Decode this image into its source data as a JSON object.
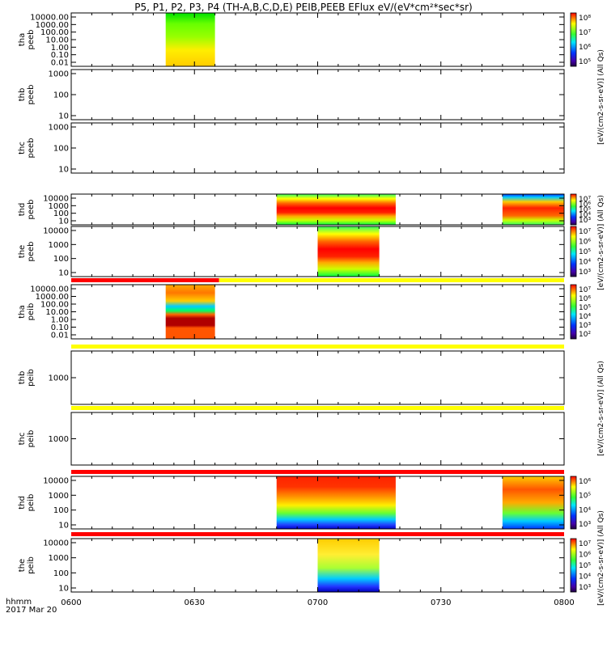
{
  "title": "P5, P1, P2, P3, P4 (TH-A,B,C,D,E) PEIB,PEEB EFlux eV/(eV*cm²*sec*sr)",
  "footer": {
    "axis_label": "hhmm",
    "date": "2017 Mar 20"
  },
  "colorbar_label": "[eV/(cm2-s-sr-eV)] (All Qs)",
  "colors": {
    "red": "#ff0000",
    "yellow": "#ffff00",
    "dark_red": "#b00000",
    "orange": "#ff6a00",
    "green": "#55ff00",
    "cyan": "#00e5ff",
    "blue": "#0033ff"
  },
  "chart_data": {
    "type": "heatmap",
    "xlabel": "hhmm",
    "x_ticks": [
      "0600",
      "0630",
      "0700",
      "0730",
      "0800"
    ],
    "xlim": [
      "0600",
      "0800"
    ],
    "panels": [
      {
        "id": "tha_peeb",
        "label": [
          "tha",
          "peeb"
        ],
        "ylog": true,
        "yticks": [
          "10000.00",
          "1000.00",
          "100.00",
          "10.00",
          "1.00",
          "0.10",
          "0.01"
        ],
        "colorbar_ticks": [
          "10⁸",
          "10⁷",
          "10⁶",
          "10⁵"
        ],
        "segments": [
          {
            "start": "0623",
            "end": "0635",
            "style": "peeb_a"
          }
        ],
        "top_bar": "none"
      },
      {
        "id": "thb_peeb",
        "label": [
          "thb",
          "peeb"
        ],
        "ylog": true,
        "yticks": [
          "1000",
          "100",
          "10"
        ],
        "colorbar_ticks": [],
        "segments": [],
        "top_bar": "none"
      },
      {
        "id": "thc_peeb",
        "label": [
          "thc",
          "peeb"
        ],
        "ylog": true,
        "yticks": [
          "1000",
          "100",
          "10"
        ],
        "colorbar_ticks": [],
        "segments": [],
        "top_bar": "none"
      },
      {
        "id": "thd_peeb",
        "label": [
          "thd",
          "peeb"
        ],
        "ylog": true,
        "yticks": [
          "10000",
          "1000",
          "100",
          "10"
        ],
        "colorbar_ticks": [
          "10⁷",
          "10⁶",
          "10⁵",
          "10⁴",
          "10³"
        ],
        "segments": [
          {
            "start": "0650",
            "end": "0719",
            "style": "peeb_d"
          },
          {
            "start": "0745",
            "end": "0800",
            "style": "peeb_d2"
          }
        ],
        "top_bar": "none"
      },
      {
        "id": "the_peeb",
        "label": [
          "the",
          "peeb"
        ],
        "ylog": true,
        "yticks": [
          "10000",
          "1000",
          "100",
          "10"
        ],
        "colorbar_ticks": [
          "10⁷",
          "10⁶",
          "10⁵",
          "10⁴",
          "10³"
        ],
        "segments": [
          {
            "start": "0700",
            "end": "0715",
            "style": "peeb_d"
          }
        ],
        "top_bar": "none"
      },
      {
        "id": "tha_peib",
        "label": [
          "tha",
          "peib"
        ],
        "ylog": true,
        "yticks": [
          "10000.00",
          "1000.00",
          "100.00",
          "10.00",
          "1.00",
          "0.10",
          "0.01"
        ],
        "colorbar_ticks": [
          "10⁷",
          "10⁶",
          "10⁵",
          "10⁴",
          "10³",
          "10²"
        ],
        "segments": [
          {
            "start": "0623",
            "end": "0635",
            "style": "peib_a"
          }
        ],
        "top_bar": "red_yellow"
      },
      {
        "id": "thb_peib",
        "label": [
          "thb",
          "peib"
        ],
        "ylog": true,
        "yticks": [
          "1000"
        ],
        "colorbar_ticks": [],
        "segments": [],
        "top_bar": "yellow"
      },
      {
        "id": "thc_peib",
        "label": [
          "thc",
          "peib"
        ],
        "ylog": true,
        "yticks": [
          "1000"
        ],
        "colorbar_ticks": [],
        "segments": [],
        "top_bar": "yellow"
      },
      {
        "id": "thd_peib",
        "label": [
          "thd",
          "peib"
        ],
        "ylog": true,
        "yticks": [
          "10000",
          "1000",
          "100",
          "10"
        ],
        "colorbar_ticks": [
          "10⁶",
          "10⁵",
          "10⁴",
          "10³"
        ],
        "segments": [
          {
            "start": "0650",
            "end": "0719",
            "style": "peib_d"
          },
          {
            "start": "0745",
            "end": "0800",
            "style": "peib_d2"
          }
        ],
        "top_bar": "red"
      },
      {
        "id": "the_peib",
        "label": [
          "the",
          "peib"
        ],
        "ylog": true,
        "yticks": [
          "10000",
          "1000",
          "100",
          "10"
        ],
        "colorbar_ticks": [
          "10⁷",
          "10⁶",
          "10⁵",
          "10⁴",
          "10³"
        ],
        "segments": [
          {
            "start": "0700",
            "end": "0715",
            "style": "peib_e"
          }
        ],
        "top_bar": "red"
      }
    ]
  }
}
